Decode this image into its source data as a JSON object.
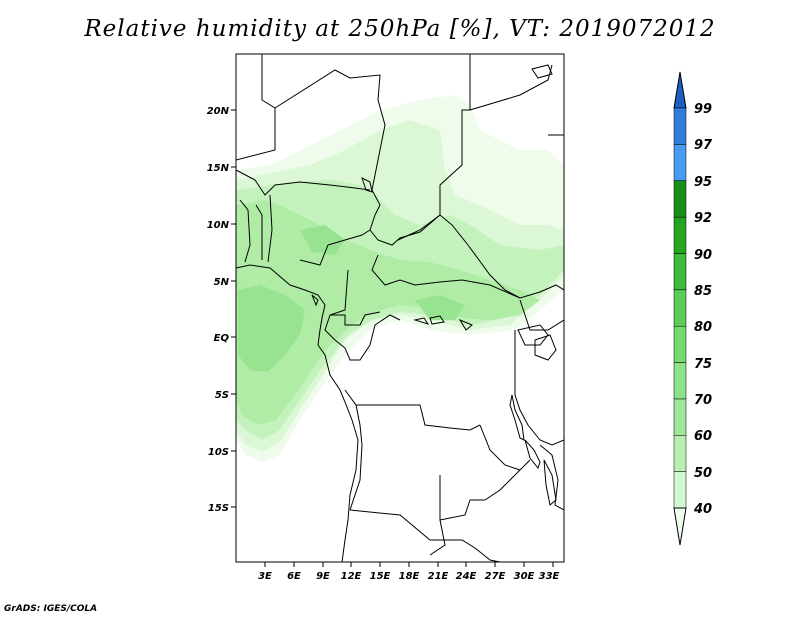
{
  "title": "Relative humidity at 250hPa [%], VT: 2019072012",
  "credit": "GrADS: IGES/COLA",
  "map": {
    "lon_range": [
      0,
      34
    ],
    "lat_range": [
      -20,
      25
    ],
    "lon_ticks": [
      "3E",
      "6E",
      "9E",
      "12E",
      "15E",
      "18E",
      "21E",
      "24E",
      "27E",
      "30E",
      "33E"
    ],
    "lat_ticks": [
      "20N",
      "15N",
      "10N",
      "5N",
      "EQ",
      "5S",
      "10S",
      "15S"
    ]
  },
  "colorbar": {
    "levels": [
      "40",
      "50",
      "60",
      "70",
      "75",
      "80",
      "85",
      "90",
      "92",
      "95",
      "97",
      "99"
    ],
    "colors": [
      "#f0fff0",
      "#d4f8d0",
      "#b7f0b0",
      "#a0e898",
      "#8de28a",
      "#74d870",
      "#5ccd58",
      "#3dbb38",
      "#25a520",
      "#1a8f17",
      "#4a9cf0",
      "#2f7ddb",
      "#1e5fc4"
    ]
  },
  "chart_data": {
    "type": "heatmap",
    "title": "Relative humidity at 250hPa [%], VT: 2019072012",
    "variable": "Relative humidity at 250hPa",
    "unit": "%",
    "valid_time": "2019072012",
    "x_ticks": [
      "3E",
      "6E",
      "9E",
      "12E",
      "15E",
      "18E",
      "21E",
      "24E",
      "27E",
      "30E",
      "33E"
    ],
    "y_ticks": [
      "20N",
      "15N",
      "10N",
      "5N",
      "EQ",
      "5S",
      "10S",
      "15S"
    ],
    "xlim": [
      0,
      34
    ],
    "ylim": [
      -20,
      25
    ],
    "legend_levels": [
      40,
      50,
      60,
      70,
      75,
      80,
      85,
      90,
      92,
      95,
      97,
      99
    ],
    "legend_position": "right",
    "region": "Central Africa"
  }
}
